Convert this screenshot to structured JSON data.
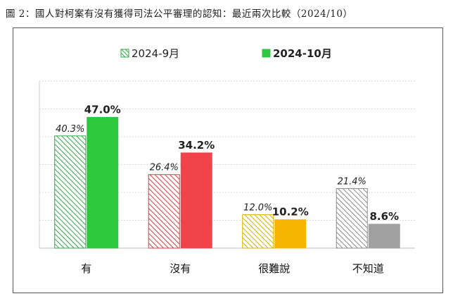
{
  "figure_title": "圖 2：國人對柯案有沒有獲得司法公平審理的認知：最近兩次比較（2024/10）",
  "chart_data": {
    "type": "bar",
    "title": "國人對柯案有沒有獲得司法公平審理的認知：最近兩次比較（2024/10）",
    "categories": [
      "有",
      "沒有",
      "很難說",
      "不知道"
    ],
    "series": [
      {
        "name": "2024-9月",
        "values": [
          40.3,
          26.4,
          12.0,
          21.4
        ],
        "labels": [
          "40.3%",
          "26.4%",
          "12.0%",
          "21.4%"
        ],
        "colors": [
          "#2fa84a",
          "#e0393e",
          "#d4b000",
          "#8a8a8a"
        ],
        "pattern": "hatched"
      },
      {
        "name": "2024-10月",
        "values": [
          47.0,
          34.2,
          10.2,
          8.6
        ],
        "labels": [
          "47.0%",
          "34.2%",
          "10.2%",
          "8.6%"
        ],
        "colors": [
          "#2ec93f",
          "#f0444a",
          "#f7b500",
          "#a0a0a0"
        ],
        "pattern": "solid"
      }
    ],
    "ylim": [
      0,
      60
    ],
    "grid": true,
    "legend_position": "top-center",
    "xlabel": "",
    "ylabel": ""
  }
}
